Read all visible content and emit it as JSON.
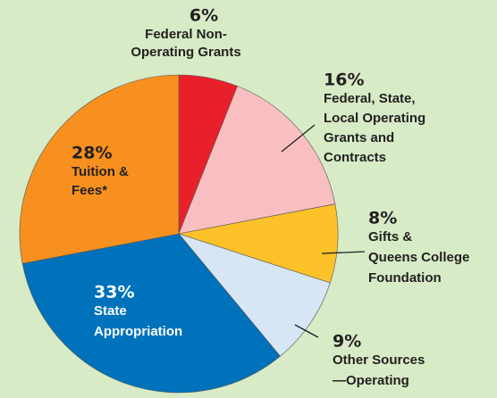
{
  "chart_data": {
    "type": "pie",
    "labels": [
      [
        "Federal Non-",
        "Operating Grants"
      ],
      [
        "Federal, State,",
        "Local Operating",
        "Grants and",
        "Contracts"
      ],
      [
        "Gifts &",
        "Queens College",
        "Foundation"
      ],
      [
        "Other Sources",
        "—Operating"
      ],
      [
        "State",
        "Appropriation"
      ],
      [
        "Tuition &",
        "Fees*"
      ]
    ],
    "values": [
      6,
      16,
      8,
      9,
      33,
      28
    ],
    "value_labels": [
      "6%",
      "16%",
      "8%",
      "9%",
      "33%",
      "28%"
    ],
    "colors": [
      "#e8202a",
      "#f9bfc0",
      "#fdc12a",
      "#d6e6f4",
      "#0072bc",
      "#f7901e"
    ]
  }
}
